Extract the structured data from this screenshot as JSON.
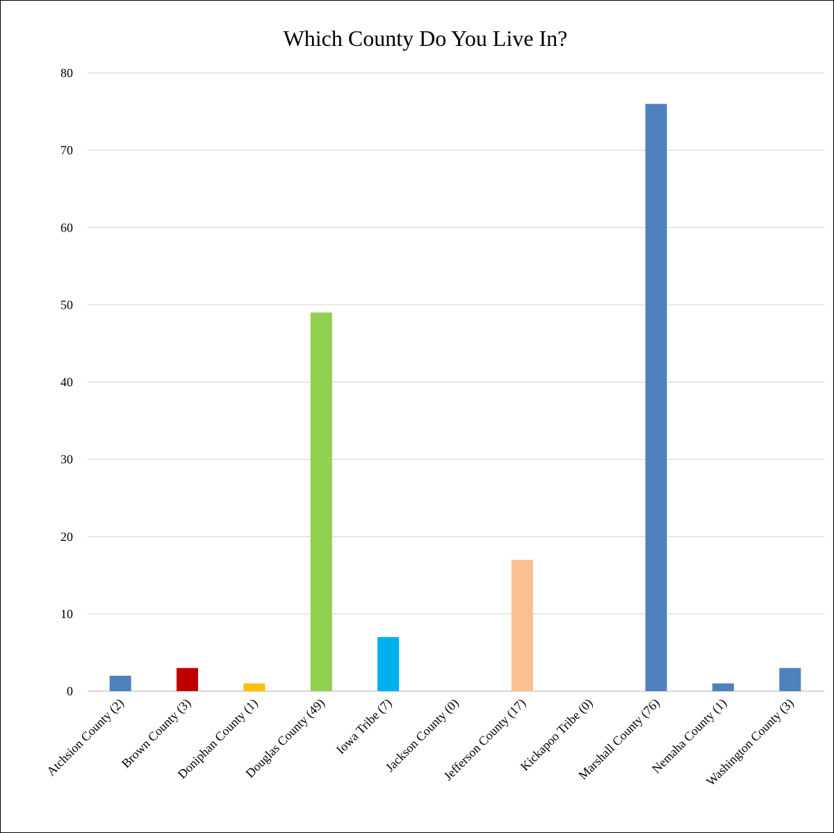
{
  "chart_data": {
    "type": "bar",
    "title": "Which County Do You Live In?",
    "xlabel": "",
    "ylabel": "",
    "ylim": [
      0,
      80
    ],
    "yticks": [
      0,
      10,
      20,
      30,
      40,
      50,
      60,
      70,
      80
    ],
    "grid": true,
    "legend": "none",
    "categories": [
      "Atchsion County (2)",
      "Brown County (3)",
      "Doniphan County (1)",
      "Douglas County (49)",
      "Iowa Tribe (7)",
      "Jackson County (0)",
      "Jefferson County (17)",
      "Kickapoo Tribe (0)",
      "Marshall County (76)",
      "Nemaha County (1)",
      "Washington County (3)"
    ],
    "values": [
      2,
      3,
      1,
      49,
      7,
      0,
      17,
      0,
      76,
      1,
      3
    ],
    "colors": [
      "#4f81bd",
      "#c00000",
      "#ffc000",
      "#92d050",
      "#00b0f0",
      "#4f81bd",
      "#fac090",
      "#4f81bd",
      "#4f81bd",
      "#4f81bd",
      "#4f81bd"
    ]
  }
}
